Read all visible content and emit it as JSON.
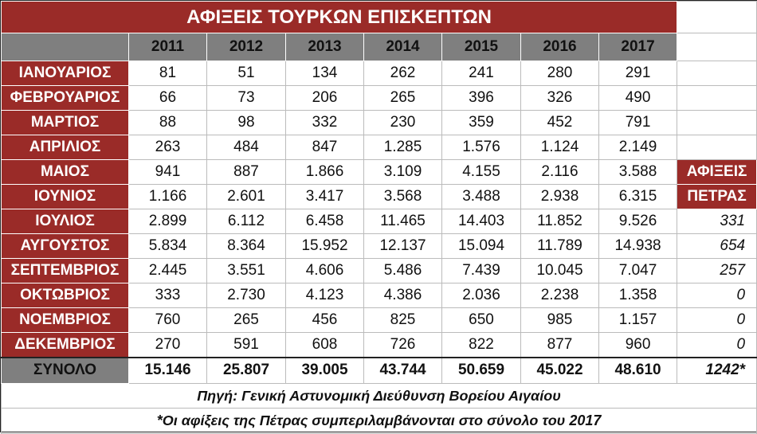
{
  "title": "ΑΦΙΞΕΙΣ ΤΟΥΡΚΩΝ ΕΠΙΣΚΕΠΤΩΝ",
  "years": [
    "2011",
    "2012",
    "2013",
    "2014",
    "2015",
    "2016",
    "2017"
  ],
  "rows": [
    {
      "month": "ΙΑΝΟΥΑΡΙΟΣ",
      "values": [
        "81",
        "51",
        "134",
        "262",
        "241",
        "280",
        "291"
      ]
    },
    {
      "month": "ΦΕΒΡΟΥΑΡΙΟΣ",
      "values": [
        "66",
        "73",
        "206",
        "265",
        "396",
        "326",
        "490"
      ]
    },
    {
      "month": "ΜΑΡΤΙΟΣ",
      "values": [
        "88",
        "98",
        "332",
        "230",
        "359",
        "452",
        "791"
      ]
    },
    {
      "month": "ΑΠΡΙΛΙΟΣ",
      "values": [
        "263",
        "484",
        "847",
        "1.285",
        "1.576",
        "1.124",
        "2.149"
      ]
    },
    {
      "month": "ΜΑΙΟΣ",
      "values": [
        "941",
        "887",
        "1.866",
        "3.109",
        "4.155",
        "2.116",
        "3.588"
      ]
    },
    {
      "month": "ΙΟΥΝΙΟΣ",
      "values": [
        "1.166",
        "2.601",
        "3.417",
        "3.568",
        "3.488",
        "2.938",
        "6.315"
      ]
    },
    {
      "month": "ΙΟΥΛΙΟΣ",
      "values": [
        "2.899",
        "6.112",
        "6.458",
        "11.465",
        "14.403",
        "11.852",
        "9.526"
      ]
    },
    {
      "month": "ΑΥΓΟΥΣΤΟΣ",
      "values": [
        "5.834",
        "8.364",
        "15.952",
        "12.137",
        "15.094",
        "11.789",
        "14.938"
      ]
    },
    {
      "month": "ΣΕΠΤΕΜΒΡΙΟΣ",
      "values": [
        "2.445",
        "3.551",
        "4.606",
        "5.486",
        "7.439",
        "10.045",
        "7.047"
      ]
    },
    {
      "month": "ΟΚΤΩΒΡΙΟΣ",
      "values": [
        "333",
        "2.730",
        "4.123",
        "4.386",
        "2.036",
        "2.238",
        "1.358"
      ]
    },
    {
      "month": "ΝΟΕΜΒΡΙΟΣ",
      "values": [
        "760",
        "265",
        "456",
        "825",
        "650",
        "985",
        "1.157"
      ]
    },
    {
      "month": "ΔΕΚΕΜΒΡΙΟΣ",
      "values": [
        "270",
        "591",
        "608",
        "726",
        "822",
        "877",
        "960"
      ]
    }
  ],
  "petra_header": [
    "ΑΦΙΞΕΙΣ",
    "ΠΕΤΡΑΣ"
  ],
  "petra_values": [
    "331",
    "654",
    "257",
    "0",
    "0",
    "0"
  ],
  "total": {
    "label": "ΣΥΝΟΛΟ",
    "values": [
      "15.146",
      "25.807",
      "39.005",
      "43.744",
      "50.659",
      "45.022",
      "48.610"
    ],
    "petra": "1242*"
  },
  "footer": [
    "Πηγή: Γενική Αστυνομική Διεύθυνση Βορείου Αιγαίου",
    "*Οι αφίξεις της Πέτρας συμπεριλαμβάνονται στο σύνολο του 2017"
  ]
}
